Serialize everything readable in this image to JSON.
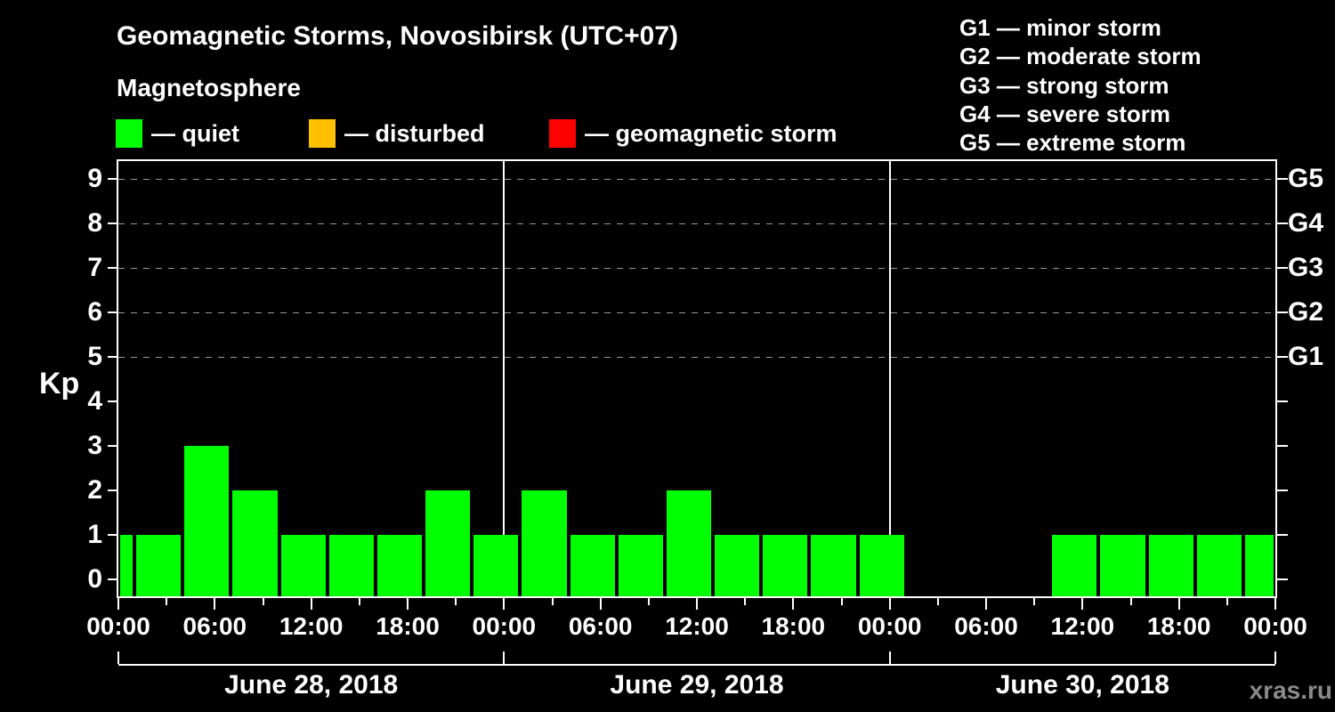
{
  "header": {
    "title": "Geomagnetic Storms, Novosibirsk (UTC+07)",
    "subtitle": "Magnetosphere"
  },
  "colors": {
    "background": "#000000",
    "axis": "#ffffff",
    "grid": "#9a9a9a",
    "quiet": "#00ff00",
    "disturbed": "#ffc000",
    "storm": "#ff0000",
    "watermark": "#8a8a8a"
  },
  "legend": [
    {
      "label": "— quiet",
      "status": "quiet"
    },
    {
      "label": "— disturbed",
      "status": "disturbed"
    },
    {
      "label": "— geomagnetic storm",
      "status": "storm"
    }
  ],
  "storm_scale_legend": [
    "G1 — minor storm",
    "G2 — moderate storm",
    "G3 — strong storm",
    "G4 — severe storm",
    "G5 — extreme storm"
  ],
  "watermark": "xras.ru",
  "chart_data": {
    "type": "bar",
    "ylabel": "Kp",
    "ylim": [
      0,
      9
    ],
    "yticks": [
      0,
      1,
      2,
      3,
      4,
      5,
      6,
      7,
      8,
      9
    ],
    "grid_levels": [
      5,
      6,
      7,
      8,
      9
    ],
    "right_axis": [
      {
        "kp": 5,
        "label": "G1"
      },
      {
        "kp": 6,
        "label": "G2"
      },
      {
        "kp": 7,
        "label": "G3"
      },
      {
        "kp": 8,
        "label": "G4"
      },
      {
        "kp": 9,
        "label": "G5"
      }
    ],
    "x_hours_total": 72,
    "x_minor_tick_hours": 3,
    "x_major_tick_hours": 6,
    "x_major_labels": [
      "00:00",
      "06:00",
      "12:00",
      "18:00",
      "00:00",
      "06:00",
      "12:00",
      "18:00",
      "00:00",
      "06:00",
      "12:00",
      "18:00",
      "00:00"
    ],
    "day_boundaries_hours": [
      0,
      24,
      48,
      72
    ],
    "days": [
      "June 28, 2018",
      "June 29, 2018",
      "June 30, 2018"
    ],
    "bars": [
      {
        "start_hour": 0,
        "end_hour": 1,
        "kp": 1,
        "status": "quiet"
      },
      {
        "start_hour": 1,
        "end_hour": 4,
        "kp": 1,
        "status": "quiet"
      },
      {
        "start_hour": 4,
        "end_hour": 7,
        "kp": 3,
        "status": "quiet"
      },
      {
        "start_hour": 7,
        "end_hour": 10,
        "kp": 2,
        "status": "quiet"
      },
      {
        "start_hour": 10,
        "end_hour": 13,
        "kp": 1,
        "status": "quiet"
      },
      {
        "start_hour": 13,
        "end_hour": 16,
        "kp": 1,
        "status": "quiet"
      },
      {
        "start_hour": 16,
        "end_hour": 19,
        "kp": 1,
        "status": "quiet"
      },
      {
        "start_hour": 19,
        "end_hour": 22,
        "kp": 2,
        "status": "quiet"
      },
      {
        "start_hour": 22,
        "end_hour": 25,
        "kp": 1,
        "status": "quiet"
      },
      {
        "start_hour": 25,
        "end_hour": 28,
        "kp": 2,
        "status": "quiet"
      },
      {
        "start_hour": 28,
        "end_hour": 31,
        "kp": 1,
        "status": "quiet"
      },
      {
        "start_hour": 31,
        "end_hour": 34,
        "kp": 1,
        "status": "quiet"
      },
      {
        "start_hour": 34,
        "end_hour": 37,
        "kp": 2,
        "status": "quiet"
      },
      {
        "start_hour": 37,
        "end_hour": 40,
        "kp": 1,
        "status": "quiet"
      },
      {
        "start_hour": 40,
        "end_hour": 43,
        "kp": 1,
        "status": "quiet"
      },
      {
        "start_hour": 43,
        "end_hour": 46,
        "kp": 1,
        "status": "quiet"
      },
      {
        "start_hour": 46,
        "end_hour": 49,
        "kp": 1,
        "status": "quiet"
      },
      {
        "start_hour": 58,
        "end_hour": 61,
        "kp": 1,
        "status": "quiet"
      },
      {
        "start_hour": 61,
        "end_hour": 64,
        "kp": 1,
        "status": "quiet"
      },
      {
        "start_hour": 64,
        "end_hour": 67,
        "kp": 1,
        "status": "quiet"
      },
      {
        "start_hour": 67,
        "end_hour": 70,
        "kp": 1,
        "status": "quiet"
      },
      {
        "start_hour": 70,
        "end_hour": 72,
        "kp": 1,
        "status": "quiet"
      }
    ]
  }
}
